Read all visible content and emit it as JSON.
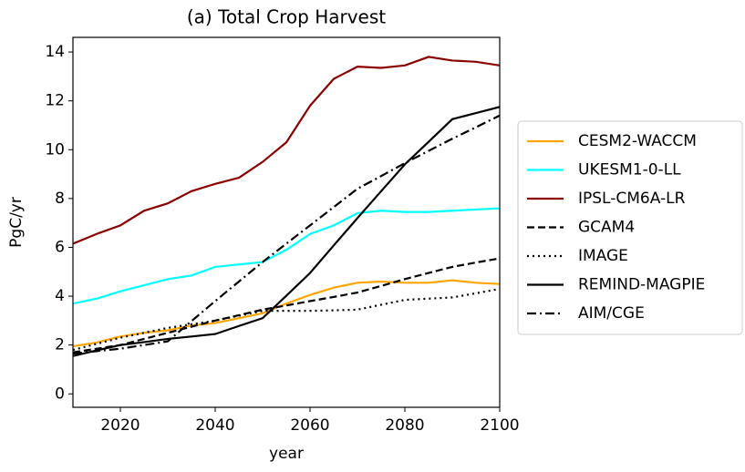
{
  "chart_data": {
    "type": "line",
    "title": "(a) Total Crop Harvest",
    "x_label": "year",
    "y_label": "PgC/yr",
    "x": [
      2010,
      2015,
      2020,
      2025,
      2030,
      2035,
      2040,
      2045,
      2050,
      2055,
      2060,
      2065,
      2070,
      2075,
      2080,
      2085,
      2090,
      2095,
      2100
    ],
    "xlim": [
      2010,
      2100
    ],
    "xticks": [
      2020,
      2040,
      2060,
      2080,
      2100
    ],
    "ylim": [
      -0.55,
      14.6
    ],
    "yticks": [
      0,
      2,
      4,
      6,
      8,
      10,
      12,
      14
    ],
    "legend": "outside-right",
    "series": [
      {
        "name": "CESM2-WACCM",
        "color": "#ffa500",
        "linestyle": "solid",
        "values": [
          1.95,
          2.1,
          2.35,
          2.5,
          2.6,
          2.8,
          2.9,
          3.1,
          3.3,
          3.7,
          4.05,
          4.35,
          4.55,
          4.6,
          4.55,
          4.55,
          4.65,
          4.55,
          4.5
        ]
      },
      {
        "name": "UKESM1-0-LL",
        "color": "#00ffff",
        "linestyle": "solid",
        "values": [
          3.7,
          3.9,
          4.2,
          4.45,
          4.7,
          4.85,
          5.2,
          5.3,
          5.4,
          5.9,
          6.55,
          6.9,
          7.4,
          7.5,
          7.45,
          7.45,
          7.5,
          7.55,
          7.6
        ]
      },
      {
        "name": "IPSL-CM6A-LR",
        "color": "#8b0000",
        "linestyle": "solid",
        "values": [
          6.15,
          6.55,
          6.9,
          7.5,
          7.8,
          8.3,
          8.6,
          8.85,
          9.5,
          10.3,
          11.8,
          12.9,
          13.4,
          13.35,
          13.45,
          13.8,
          13.65,
          13.6,
          13.45
        ]
      },
      {
        "name": "GCAM4",
        "color": "#000000",
        "linestyle": "dashed",
        "values": [
          1.7,
          1.85,
          2.0,
          2.25,
          2.5,
          2.75,
          3.0,
          3.22,
          3.45,
          3.62,
          3.8,
          3.97,
          4.15,
          4.42,
          4.7,
          4.95,
          5.2,
          5.38,
          5.55
        ]
      },
      {
        "name": "IMAGE",
        "color": "#000000",
        "linestyle": "dotted",
        "values": [
          1.8,
          2.05,
          2.3,
          2.5,
          2.7,
          2.85,
          3.0,
          3.2,
          3.4,
          3.4,
          3.4,
          3.42,
          3.45,
          3.65,
          3.85,
          3.9,
          3.95,
          4.12,
          4.3
        ]
      },
      {
        "name": "REMIND-MAGPIE",
        "color": "#000000",
        "linestyle": "solid",
        "values": [
          1.55,
          1.78,
          2.0,
          2.12,
          2.25,
          2.35,
          2.45,
          2.78,
          3.1,
          4.02,
          4.95,
          6.08,
          7.2,
          8.3,
          9.4,
          10.32,
          11.25,
          11.5,
          11.75
        ]
      },
      {
        "name": "AIM/CGE",
        "color": "#000000",
        "linestyle": "dashdot",
        "values": [
          1.65,
          1.75,
          1.85,
          2.0,
          2.15,
          2.98,
          3.8,
          4.6,
          5.4,
          6.15,
          6.9,
          7.65,
          8.4,
          8.92,
          9.45,
          9.95,
          10.45,
          10.92,
          11.4
        ]
      }
    ]
  }
}
